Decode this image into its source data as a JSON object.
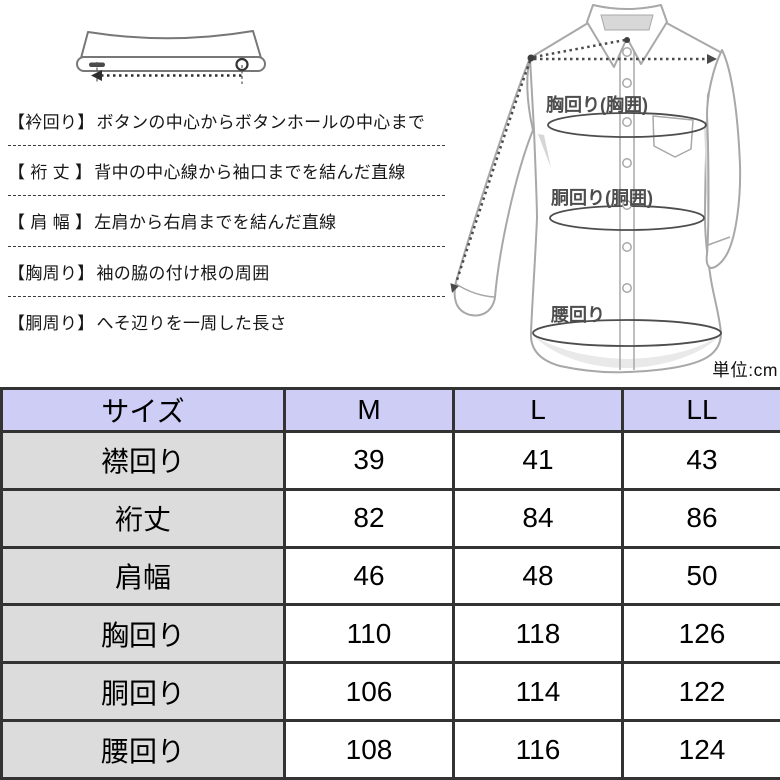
{
  "colors": {
    "table_header_bg": "#cdcdf6",
    "table_label_bg": "#dcdcdc",
    "table_border": "#333333",
    "shirt_outline": "#a8a8a8",
    "measure_line": "#4a4a4a"
  },
  "definitions": {
    "items": [
      {
        "term": "【衿回り】",
        "desc": "ボタンの中心からボタンホールの中心まで"
      },
      {
        "term": "【 裄 丈 】",
        "desc": "背中の中心線から袖口までを結んだ直線"
      },
      {
        "term": "【 肩 幅 】",
        "desc": "左肩から右肩までを結んだ直線"
      },
      {
        "term": "【胸周り】",
        "desc": "袖の脇の付け根の周囲"
      },
      {
        "term": "【胴周り】",
        "desc": "へそ辺りを一周した長さ"
      }
    ]
  },
  "diagram": {
    "labels": {
      "chest": "胸回り(胸囲)",
      "waist": "胴回り(胴囲)",
      "hip": "腰回り"
    }
  },
  "unit_label": "単位:cm",
  "chart_data": {
    "type": "table",
    "unit": "cm",
    "columns": [
      "サイズ",
      "M",
      "L",
      "LL"
    ],
    "rows": [
      {
        "label": "襟回り",
        "values": [
          39,
          41,
          43
        ]
      },
      {
        "label": "裄丈",
        "values": [
          82,
          84,
          86
        ]
      },
      {
        "label": "肩幅",
        "values": [
          46,
          48,
          50
        ]
      },
      {
        "label": "胸回り",
        "values": [
          110,
          118,
          126
        ]
      },
      {
        "label": "胴回り",
        "values": [
          106,
          114,
          122
        ]
      },
      {
        "label": "腰回り",
        "values": [
          108,
          116,
          124
        ]
      }
    ]
  }
}
